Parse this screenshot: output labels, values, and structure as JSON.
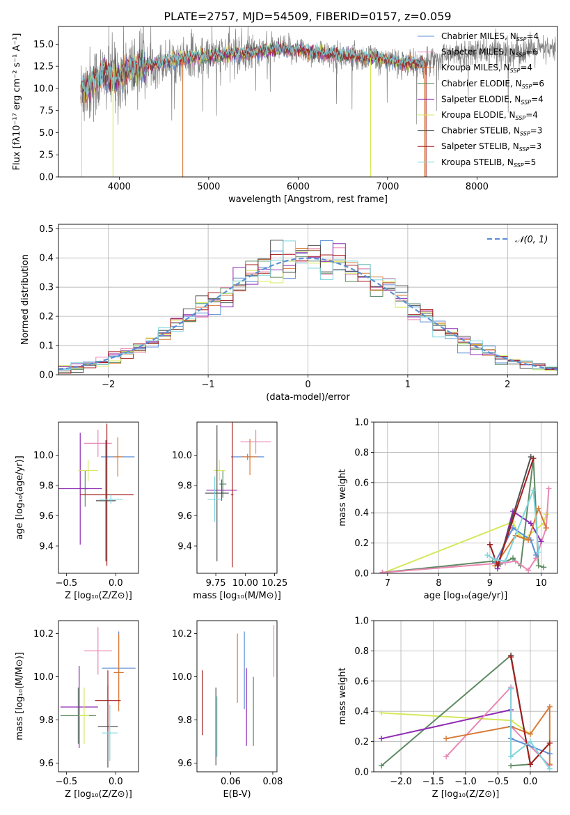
{
  "title": "PLATE=2757, MJD=54509, FIBERID=0157, z=0.059",
  "colors": {
    "Chabrier MILES": "#5b8fd6",
    "Salpeter MILES": "#e987b4",
    "Kroupa MILES": "#d77a36",
    "Chabrier ELODIE": "#5e8a63",
    "Salpeter ELODIE": "#8e2bb4",
    "Kroupa ELODIE": "#d5e85a",
    "Chabrier STELIB": "#4f4f4f",
    "Salpeter STELIB": "#a51d1d",
    "Kroupa STELIB": "#7fd5de",
    "data": "#7f7f7f"
  },
  "chart_data": [
    {
      "id": "spectrum",
      "type": "line",
      "title": "PLATE=2757, MJD=54509, FIBERID=0157, z=0.059",
      "xlabel": "wavelength [Angstrom, rest frame]",
      "ylabel": "Flux [fλ10⁻¹⁷ erg cm⁻² s⁻¹ A⁻¹]",
      "xlim": [
        3320,
        8900
      ],
      "ylim": [
        0,
        17
      ],
      "xticks": [
        "4000",
        "5000",
        "6000",
        "7000",
        "8000"
      ],
      "yticks": [
        "0.0",
        "2.5",
        "5.0",
        "7.5",
        "10.0",
        "12.5",
        "15.0"
      ],
      "legend_position": "upper-right",
      "legend": [
        {
          "name": "Chabrier MILES",
          "nssp": "4"
        },
        {
          "name": "Salpeter MILES",
          "nssp": "6"
        },
        {
          "name": "Kroupa MILES",
          "nssp": "4"
        },
        {
          "name": "Chabrier ELODIE",
          "nssp": "6"
        },
        {
          "name": "Salpeter ELODIE",
          "nssp": "4"
        },
        {
          "name": "Kroupa ELODIE",
          "nssp": "4"
        },
        {
          "name": "Chabrier STELIB",
          "nssp": "3"
        },
        {
          "name": "Salpeter STELIB",
          "nssp": "3"
        },
        {
          "name": "Kroupa STELIB",
          "nssp": "5"
        }
      ],
      "data_continuum": {
        "x": [
          3570,
          3700,
          3850,
          3950,
          4100,
          4250,
          4400,
          4600,
          4800,
          5000,
          5200,
          5400,
          5600,
          5800,
          6000,
          6200,
          6400,
          6600,
          6800,
          7000,
          7200,
          7400,
          7500,
          7700,
          7900,
          8100,
          8300,
          8500,
          8700,
          8880
        ],
        "y": [
          9.5,
          10.5,
          11.5,
          11.0,
          12.0,
          12.5,
          12.8,
          13.2,
          13.5,
          13.6,
          13.8,
          14.0,
          14.2,
          14.4,
          14.3,
          14.0,
          13.8,
          13.6,
          13.5,
          13.2,
          12.8,
          12.8,
          13.3,
          13.7,
          14.0,
          14.1,
          14.2,
          14.2,
          14.3,
          14.3
        ]
      },
      "data_range": [
        3570,
        8880
      ],
      "model_range": [
        3570,
        7420
      ],
      "dropouts": [
        {
          "x": 3580,
          "series": "Kroupa ELODIE"
        },
        {
          "x": 3930,
          "series": "Kroupa ELODIE"
        },
        {
          "x": 4710,
          "series": "Kroupa MILES"
        },
        {
          "x": 6810,
          "series": "Kroupa ELODIE"
        },
        {
          "x": 7410,
          "series": "Kroupa MILES"
        },
        {
          "x": 7430,
          "series": "Salpeter STELIB"
        }
      ]
    },
    {
      "id": "residuals",
      "type": "histogram",
      "xlabel": "(data-model)/error",
      "ylabel": "Normed distribution",
      "xlim": [
        -2.5,
        2.5
      ],
      "ylim": [
        0,
        0.515
      ],
      "xticks": [
        "−2",
        "−1",
        "0",
        "1",
        "2"
      ],
      "yticks": [
        "0.0",
        "0.1",
        "0.2",
        "0.3",
        "0.4",
        "0.5"
      ],
      "bin_width": 0.125,
      "grid": true,
      "normal_label": "𝒩(0, 1)",
      "legend_position": "upper-right"
    },
    {
      "id": "age-vs-Z",
      "type": "errorbar",
      "xlabel": "Z [log₁₀(Z/Z⊙)]",
      "ylabel": "age  [log₁₀(age/yr)]",
      "xlim": [
        -0.58,
        0.23
      ],
      "ylim": [
        9.22,
        10.22
      ],
      "xticks": [
        "−0.5",
        "0.0"
      ],
      "yticks": [
        "9.4",
        "9.6",
        "9.8",
        "10.0"
      ],
      "points": [
        {
          "series": "Chabrier MILES",
          "x": 0.02,
          "xerr": 0.17,
          "y": 9.99,
          "yerr": 0.01
        },
        {
          "series": "Salpeter MILES",
          "x": -0.18,
          "xerr": 0.14,
          "y": 10.08,
          "yerr": 0.09
        },
        {
          "series": "Kroupa MILES",
          "x": 0.02,
          "xerr": 0.05,
          "y": 9.99,
          "yerr": 0.13
        },
        {
          "series": "Chabrier ELODIE",
          "x": -0.31,
          "xerr": 0.04,
          "y": 9.78,
          "yerr": 0.12
        },
        {
          "series": "Salpeter ELODIE",
          "x": -0.36,
          "xerr": 0.22,
          "y": 9.78,
          "yerr": 0.37
        },
        {
          "series": "Kroupa ELODIE",
          "x": -0.28,
          "xerr": 0.1,
          "y": 9.9,
          "yerr": 0.07
        },
        {
          "series": "Chabrier STELIB",
          "x": -0.1,
          "xerr": 0.1,
          "y": 9.7,
          "yerr": 0.4
        },
        {
          "series": "Salpeter STELIB",
          "x": -0.09,
          "xerr": 0.27,
          "y": 9.74,
          "yerr": 0.47
        },
        {
          "series": "Kroupa STELIB",
          "x": -0.05,
          "xerr": 0.12,
          "y": 9.71,
          "yerr": 0.03
        }
      ]
    },
    {
      "id": "age-vs-mass",
      "type": "errorbar",
      "xlabel": "mass [log₁₀(M/M⊙)]",
      "ylabel": "",
      "xlim": [
        9.59,
        10.27
      ],
      "ylim": [
        9.22,
        10.22
      ],
      "xticks": [
        "9.75",
        "10.00",
        "10.25"
      ],
      "yticks": [
        "9.4",
        "9.6",
        "9.8",
        "10.0"
      ],
      "points": [
        {
          "series": "Chabrier MILES",
          "x": 10.02,
          "xerr": 0.14,
          "y": 9.99,
          "yerr": 0.02
        },
        {
          "series": "Salpeter MILES",
          "x": 10.09,
          "xerr": 0.13,
          "y": 10.09,
          "yerr": 0.08
        },
        {
          "series": "Kroupa MILES",
          "x": 10.04,
          "xerr": 0.07,
          "y": 9.99,
          "yerr": 0.12
        },
        {
          "series": "Chabrier ELODIE",
          "x": 9.81,
          "xerr": 0.03,
          "y": 9.81,
          "yerr": 0.09
        },
        {
          "series": "Salpeter ELODIE",
          "x": 9.8,
          "xerr": 0.13,
          "y": 9.77,
          "yerr": 0.07
        },
        {
          "series": "Kroupa ELODIE",
          "x": 9.78,
          "xerr": 0.05,
          "y": 9.9,
          "yerr": 0.07
        },
        {
          "series": "Chabrier STELIB",
          "x": 9.76,
          "xerr": 0.1,
          "y": 9.75,
          "yerr": 0.45
        },
        {
          "series": "Salpeter STELIB",
          "x": 9.89,
          "xerr": 0.01,
          "y": 9.74,
          "yerr": 0.48
        },
        {
          "series": "Kroupa STELIB",
          "x": 9.74,
          "xerr": 0.06,
          "y": 9.71,
          "yerr": 0.15
        }
      ]
    },
    {
      "id": "weight-vs-age",
      "type": "line",
      "xlabel": "age  [log₁₀(age/yr)]",
      "ylabel": "mass weight",
      "xlim": [
        6.73,
        10.32
      ],
      "ylim": [
        0,
        1
      ],
      "xticks": [
        "7",
        "8",
        "9",
        "10"
      ],
      "yticks": [
        "0.0",
        "0.2",
        "0.4",
        "0.6",
        "0.8",
        "1.0"
      ],
      "grid": true,
      "series": [
        {
          "name": "Kroupa ELODIE",
          "x": [
            6.9,
            9.45,
            9.55,
            9.68,
            10.05,
            10.1
          ],
          "y": [
            0.0,
            0.34,
            0.26,
            0.23,
            0.33,
            0.39
          ]
        },
        {
          "name": "Chabrier ELODIE",
          "x": [
            6.9,
            9.05,
            9.2,
            9.45,
            9.6,
            9.85,
            9.95,
            10.05
          ],
          "y": [
            0.005,
            0.08,
            0.06,
            0.1,
            0.05,
            0.76,
            0.05,
            0.04
          ]
        },
        {
          "name": "Salpeter MILES",
          "x": [
            6.9,
            9.3,
            9.5,
            9.75,
            9.9,
            10.1,
            10.15
          ],
          "y": [
            0.005,
            0.07,
            0.08,
            0.02,
            0.1,
            0.3,
            0.56
          ]
        },
        {
          "name": "Salpeter ELODIE",
          "x": [
            9.15,
            9.45,
            9.8,
            10.0
          ],
          "y": [
            0.03,
            0.41,
            0.33,
            0.21
          ]
        },
        {
          "name": "Chabrier MILES",
          "x": [
            9.1,
            9.45,
            9.8,
            9.9
          ],
          "y": [
            0.07,
            0.3,
            0.22,
            0.12
          ]
        },
        {
          "name": "Kroupa MILES",
          "x": [
            9.1,
            9.5,
            9.75,
            9.95,
            10.1
          ],
          "y": [
            0.05,
            0.25,
            0.22,
            0.43,
            0.3
          ]
        },
        {
          "name": "Chabrier STELIB",
          "x": [
            9.0,
            9.15,
            9.8
          ],
          "y": [
            0.19,
            0.05,
            0.77
          ]
        },
        {
          "name": "Salpeter STELIB",
          "x": [
            9.0,
            9.15,
            9.85
          ],
          "y": [
            0.19,
            0.05,
            0.76
          ]
        },
        {
          "name": "Kroupa STELIB",
          "x": [
            8.95,
            9.1,
            9.3,
            9.85,
            9.95
          ],
          "y": [
            0.12,
            0.09,
            0.08,
            0.55,
            0.14
          ]
        }
      ]
    },
    {
      "id": "mass-vs-Z",
      "type": "errorbar",
      "xlabel": "Z [log₁₀(Z/Z⊙)]",
      "ylabel": "mass [log₁₀(M/M⊙)]",
      "xlim": [
        -0.58,
        0.23
      ],
      "ylim": [
        9.56,
        10.26
      ],
      "xticks": [
        "−0.5",
        "0.0"
      ],
      "yticks": [
        "9.6",
        "9.8",
        "10.0",
        "10.2"
      ],
      "points": [
        {
          "series": "Chabrier MILES",
          "x": 0.03,
          "xerr": 0.17,
          "y": 10.04,
          "yerr": 0.17
        },
        {
          "series": "Salpeter MILES",
          "x": -0.18,
          "xerr": 0.14,
          "y": 10.12,
          "yerr": 0.11
        },
        {
          "series": "Kroupa MILES",
          "x": 0.03,
          "xerr": 0.05,
          "y": 10.02,
          "yerr": 0.18
        },
        {
          "series": "Chabrier ELODIE",
          "x": -0.38,
          "xerr": 0.18,
          "y": 9.82,
          "yerr": 0.13
        },
        {
          "series": "Salpeter ELODIE",
          "x": -0.37,
          "xerr": 0.19,
          "y": 9.86,
          "yerr": 0.19
        },
        {
          "series": "Kroupa ELODIE",
          "x": -0.32,
          "xerr": 0.05,
          "y": 9.82,
          "yerr": 0.13
        },
        {
          "series": "Chabrier STELIB",
          "x": -0.08,
          "xerr": 0.1,
          "y": 9.77,
          "yerr": 0.19
        },
        {
          "series": "Salpeter STELIB",
          "x": -0.08,
          "xerr": 0.13,
          "y": 9.89,
          "yerr": 0.14
        },
        {
          "series": "Kroupa STELIB",
          "x": -0.06,
          "xerr": 0.08,
          "y": 9.74,
          "yerr": 0.13
        }
      ]
    },
    {
      "id": "mass-vs-EBV",
      "type": "errorbar",
      "xlabel": "E(B-V)",
      "ylabel": "",
      "xlim": [
        0.044,
        0.082
      ],
      "ylim": [
        9.56,
        10.26
      ],
      "xticks": [
        "0.06",
        "0.08"
      ],
      "yticks": [
        "9.6",
        "9.8",
        "10.0",
        "10.2"
      ],
      "points": [
        {
          "series": "Chabrier MILES",
          "x": 0.0665,
          "xerr": 0,
          "y": 10.03,
          "yerr": 0.18
        },
        {
          "series": "Salpeter MILES",
          "x": 0.0805,
          "xerr": 0,
          "y": 10.12,
          "yerr": 0.12
        },
        {
          "series": "Kroupa MILES",
          "x": 0.0632,
          "xerr": 0,
          "y": 10.04,
          "yerr": 0.16
        },
        {
          "series": "Chabrier ELODIE",
          "x": 0.0708,
          "xerr": 0,
          "y": 9.84,
          "yerr": 0.16
        },
        {
          "series": "Salpeter ELODIE",
          "x": 0.0675,
          "xerr": 0,
          "y": 9.86,
          "yerr": 0.18
        },
        {
          "series": "Kroupa ELODIE",
          "x": 0.053,
          "xerr": 0,
          "y": 9.78,
          "yerr": 0.16
        },
        {
          "series": "Chabrier STELIB",
          "x": 0.053,
          "xerr": 0,
          "y": 9.77,
          "yerr": 0.18
        },
        {
          "series": "Salpeter STELIB",
          "x": 0.0465,
          "xerr": 0,
          "y": 9.88,
          "yerr": 0.15
        },
        {
          "series": "Kroupa STELIB",
          "x": 0.0535,
          "xerr": 0,
          "y": 9.77,
          "yerr": 0.14
        }
      ]
    },
    {
      "id": "weight-vs-Z",
      "type": "line",
      "xlabel": "Z [log₁₀(Z/Z⊙)]",
      "ylabel": "mass weight",
      "xlim": [
        -2.42,
        0.42
      ],
      "ylim": [
        0,
        1
      ],
      "xticks": [
        "−2.0",
        "−1.5",
        "−1.0",
        "−0.5",
        "0.0"
      ],
      "yticks": [
        "0.0",
        "0.2",
        "0.4",
        "0.6",
        "0.8",
        "1.0"
      ],
      "grid": true,
      "series": [
        {
          "name": "Kroupa ELODIE",
          "x": [
            -2.3,
            -0.3,
            0.0
          ],
          "y": [
            0.39,
            0.34,
            0.25
          ]
        },
        {
          "name": "Chabrier ELODIE",
          "x": [
            -2.3,
            -0.3,
            0.0,
            -0.3
          ],
          "y": [
            0.04,
            0.77,
            0.05,
            0.04
          ]
        },
        {
          "name": "Salpeter ELODIE",
          "x": [
            -2.3,
            -0.3
          ],
          "y": [
            0.22,
            0.41
          ]
        },
        {
          "name": "Salpeter MILES",
          "x": [
            -1.3,
            -0.3,
            -0.3,
            0.3
          ],
          "y": [
            0.1,
            0.56,
            0.3,
            0.04
          ]
        },
        {
          "name": "Kroupa MILES",
          "x": [
            -1.3,
            -0.3,
            0.0,
            0.3,
            0.3
          ],
          "y": [
            0.22,
            0.3,
            0.25,
            0.43,
            0.05
          ]
        },
        {
          "name": "Chabrier MILES",
          "x": [
            -0.3,
            -0.3,
            0.3
          ],
          "y": [
            0.3,
            0.22,
            0.12
          ]
        },
        {
          "name": "Chabrier STELIB",
          "x": [
            -0.3,
            0.0,
            0.3
          ],
          "y": [
            0.77,
            0.05,
            0.19
          ]
        },
        {
          "name": "Salpeter STELIB",
          "x": [
            -0.3,
            0.0,
            0.3
          ],
          "y": [
            0.76,
            0.05,
            0.19
          ]
        },
        {
          "name": "Kroupa STELIB",
          "x": [
            -0.3,
            -0.3,
            0.0,
            0.3
          ],
          "y": [
            0.55,
            0.1,
            0.2,
            0.02
          ]
        }
      ]
    }
  ]
}
